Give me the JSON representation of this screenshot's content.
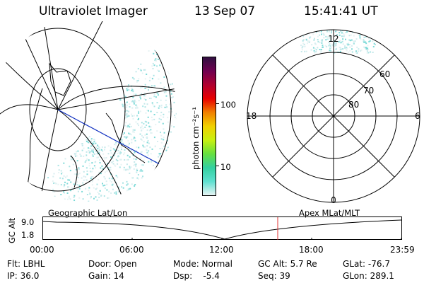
{
  "header": {
    "instrument": "Ultraviolet Imager",
    "date": "13 Sep 07",
    "time": "15:41:41 UT"
  },
  "colorbar": {
    "unit_label": "photon cm⁻²s⁻¹",
    "ticks": [
      "100",
      "10"
    ],
    "colors": [
      "#e8f4f4",
      "#5ee0d0",
      "#33d0a0",
      "#66e040",
      "#c8f010",
      "#f0d000",
      "#f08000",
      "#e80000",
      "#b00030",
      "#700050",
      "#301040"
    ]
  },
  "polar": {
    "mlt_labels": [
      "12",
      "18",
      "6",
      "0"
    ],
    "mlat_labels": [
      "60",
      "70",
      "80"
    ]
  },
  "geo_label": "Geographic Lat/Lon",
  "apex_label": "Apex MLat/MLT",
  "timeline": {
    "ylabel": "GC Alt",
    "yticks": [
      "9.0",
      "1.8"
    ],
    "xticks": [
      "00:00",
      "06:00",
      "12:00",
      "18:00",
      "23:59"
    ],
    "marker_color": "#e03030"
  },
  "footer": {
    "row1": {
      "flt": "Flt: LBHL",
      "door": "Door: Open",
      "mode": "Mode: Normal",
      "gcalt": "GC Alt: 5.7 Re",
      "glat": "GLat: -76.7"
    },
    "row2": {
      "ip": "IP: 36.0",
      "gain": "Gain: 14",
      "dsp": "Dsp:    -5.4",
      "seq": "Seq: 39",
      "glon": "GLon: 289.1"
    }
  }
}
